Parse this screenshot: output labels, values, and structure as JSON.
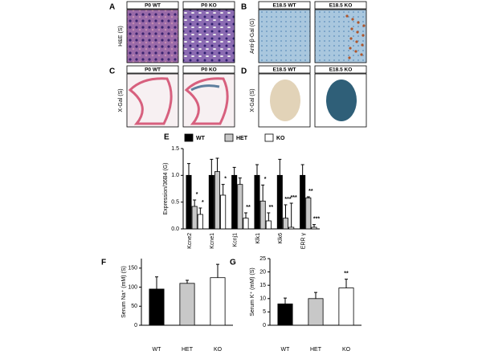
{
  "panels": [
    {
      "label": "A",
      "side_label": "H&E (S)",
      "images": [
        "P0 WT",
        "P0 KO"
      ]
    },
    {
      "label": "B",
      "side_label": "Anti-β-Gal (G)",
      "images": [
        "E18.5 WT",
        "E18.5 KO"
      ]
    },
    {
      "label": "C",
      "side_label": "X-Gal (S)",
      "images": [
        "P0 WT",
        "P0 KO"
      ]
    },
    {
      "label": "D",
      "side_label": "X-Gal (S)",
      "images": [
        "E18.5 WT",
        "E18.5 KO"
      ]
    }
  ],
  "chart_data": [
    {
      "type": "bar",
      "panel_label": "E",
      "y_label": "Expression/36B4 (G)",
      "categories": [
        "Kcne2",
        "Kcne1",
        "Kcnj1",
        "Klk1",
        "Klk6",
        "ERR γ"
      ],
      "series": [
        {
          "name": "WT",
          "color": "#000000",
          "values": [
            1.0,
            1.0,
            1.0,
            1.0,
            1.0,
            1.0
          ],
          "errors": [
            0.22,
            0.3,
            0.15,
            0.2,
            0.3,
            0.2
          ],
          "significance": [
            null,
            null,
            null,
            null,
            null,
            null
          ]
        },
        {
          "name": "HET",
          "color": "#c8c8c8",
          "values": [
            0.42,
            1.07,
            0.83,
            0.52,
            0.2,
            0.58
          ],
          "errors": [
            0.12,
            0.25,
            0.12,
            0.3,
            0.25,
            0.02
          ],
          "significance": [
            "*",
            null,
            null,
            "*",
            "***",
            "**"
          ]
        },
        {
          "name": "KO",
          "color": "#ffffff",
          "values": [
            0.27,
            0.63,
            0.2,
            0.15,
            0.03,
            0.03
          ],
          "errors": [
            0.12,
            0.2,
            0.1,
            0.15,
            0.45,
            0.05
          ],
          "significance": [
            "*",
            "*",
            "**",
            "**",
            "***",
            "***"
          ]
        }
      ],
      "ylim": [
        0,
        1.5
      ],
      "yticks": [
        {
          "value": 0,
          "label": "0.0"
        },
        {
          "value": 0.5,
          "label": "0.5"
        },
        {
          "value": 1,
          "label": "1.0"
        },
        {
          "value": 1.5,
          "label": "1.5"
        }
      ]
    },
    {
      "type": "bar",
      "panel_label": "F",
      "y_label": "Serum Na⁺ (mM) (S)",
      "categories": [
        "WT",
        "HET",
        "KO"
      ],
      "values": [
        95,
        110,
        125
      ],
      "errors": [
        32,
        8,
        35
      ],
      "colors": [
        "#000000",
        "#c8c8c8",
        "#ffffff"
      ],
      "significance": [
        null,
        null,
        null
      ],
      "ylim": [
        0,
        175
      ],
      "yticks": [
        0,
        50,
        100,
        150
      ]
    },
    {
      "type": "bar",
      "panel_label": "G",
      "y_label": "Serum K⁺ (mM) (S)",
      "categories": [
        "WT",
        "HET",
        "KO"
      ],
      "values": [
        8,
        10,
        14
      ],
      "errors": [
        2.2,
        2.3,
        3.3
      ],
      "colors": [
        "#000000",
        "#c8c8c8",
        "#ffffff"
      ],
      "significance": [
        null,
        null,
        "**"
      ],
      "ylim": [
        0,
        25
      ],
      "yticks": [
        0,
        5,
        10,
        15,
        20,
        25
      ]
    }
  ]
}
